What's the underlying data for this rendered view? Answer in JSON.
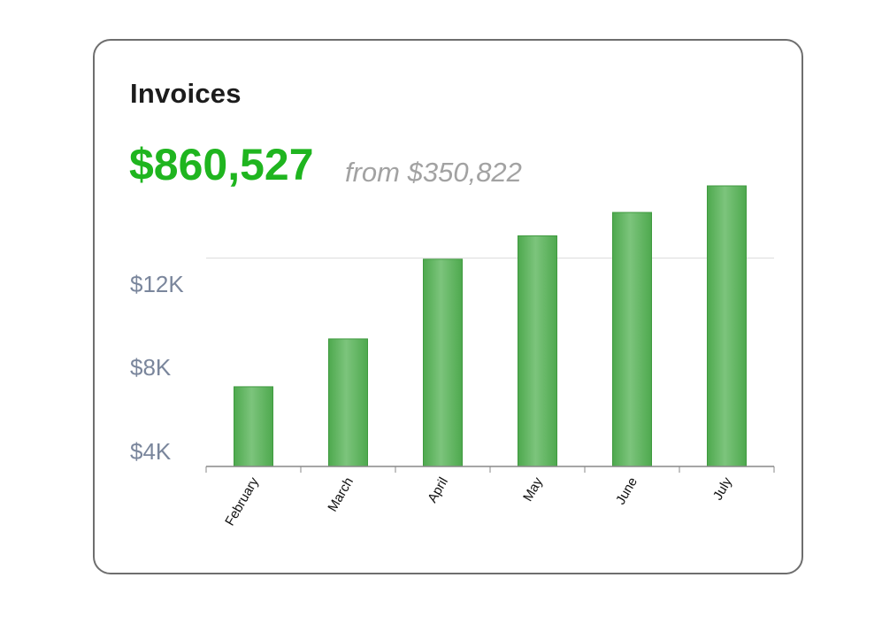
{
  "card": {
    "title": "Invoices",
    "amount": "$860,527",
    "from_text": "from $350,822"
  },
  "colors": {
    "amount": "#1fb51f",
    "bar": "#5cb85c",
    "bar_stroke": "#3f9a3f",
    "axis_label": "#7a869c"
  },
  "chart_data": {
    "type": "bar",
    "categories": [
      "February",
      "March",
      "April",
      "May",
      "June",
      "July"
    ],
    "values": [
      5.95,
      8.2,
      11.95,
      13.05,
      14.15,
      15.4
    ],
    "title": "",
    "xlabel": "",
    "ylabel": "",
    "ytick_labels": [
      "$4K",
      "$8K",
      "$12K"
    ],
    "ytick_values": [
      4,
      8,
      12
    ],
    "ylim": [
      2.2,
      15.4
    ],
    "grid": "horizontal line at $12K",
    "legend": "none"
  }
}
